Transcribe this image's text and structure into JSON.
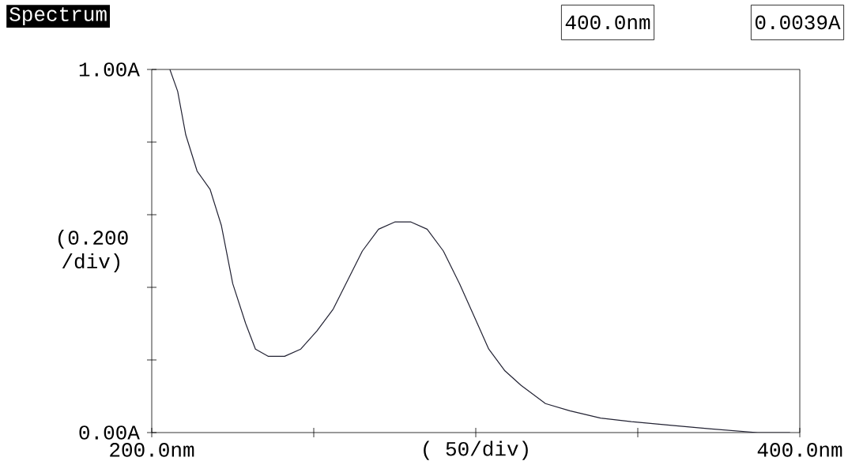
{
  "chart_data": {
    "type": "line",
    "title": "Spectrum",
    "xlabel": "( 50/div)",
    "ylabel": "(0.200 /div)",
    "annotations": [
      "400.0nm",
      "0.0039A"
    ],
    "xlim": [
      200,
      400
    ],
    "ylim": [
      0,
      1
    ],
    "xticks": [
      {
        "value": 200,
        "label": "200.0nm"
      },
      {
        "value": 250,
        "label": null
      },
      {
        "value": 300,
        "label": null
      },
      {
        "value": 350,
        "label": null
      },
      {
        "value": 400,
        "label": "400.0nm"
      }
    ],
    "yticks": [
      {
        "value": 0,
        "label": "0.00A"
      },
      {
        "value": 0.2,
        "label": null
      },
      {
        "value": 0.4,
        "label": null
      },
      {
        "value": 0.6,
        "label": null
      },
      {
        "value": 0.8,
        "label": null
      },
      {
        "value": 1,
        "label": "1.00A"
      }
    ],
    "series": [
      {
        "color": "#222233",
        "x": [
          205.6,
          208,
          210.5,
          214,
          218,
          221.5,
          225,
          229,
          232,
          236,
          241,
          246,
          251,
          256,
          260.5,
          265,
          270,
          275,
          280,
          285,
          290,
          295,
          299.5,
          304,
          309,
          314,
          321.5,
          329,
          338.5,
          348,
          360.5,
          372.7,
          387,
          397
        ],
        "values": [
          1.0,
          0.94,
          0.82,
          0.72,
          0.67,
          0.57,
          0.41,
          0.3,
          0.23,
          0.21,
          0.21,
          0.23,
          0.28,
          0.34,
          0.42,
          0.5,
          0.56,
          0.58,
          0.58,
          0.56,
          0.5,
          0.41,
          0.32,
          0.23,
          0.17,
          0.13,
          0.08,
          0.06,
          0.04,
          0.03,
          0.02,
          0.01,
          0.0,
          0.0
        ]
      }
    ]
  }
}
